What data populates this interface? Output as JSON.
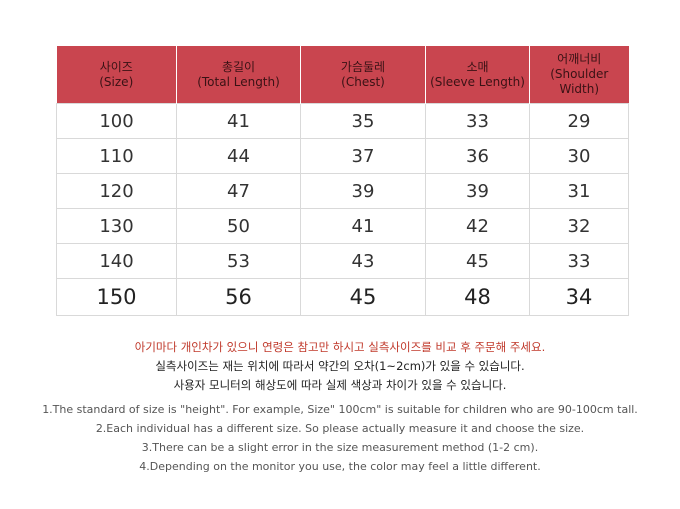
{
  "table": {
    "headers": [
      {
        "ko": "사이즈",
        "en": "(Size)"
      },
      {
        "ko": "총길이",
        "en": "(Total Length)"
      },
      {
        "ko": "가슴둘레",
        "en": "(Chest)"
      },
      {
        "ko": "소매",
        "en": "(Sleeve Length)"
      },
      {
        "ko": "어깨너비",
        "en": "(Shoulder Width)"
      }
    ],
    "rows": [
      [
        "100",
        "41",
        "35",
        "33",
        "29"
      ],
      [
        "110",
        "44",
        "37",
        "36",
        "30"
      ],
      [
        "120",
        "47",
        "39",
        "39",
        "31"
      ],
      [
        "130",
        "50",
        "41",
        "42",
        "32"
      ],
      [
        "140",
        "53",
        "43",
        "45",
        "33"
      ],
      [
        "150",
        "56",
        "45",
        "48",
        "34"
      ]
    ]
  },
  "notes_ko": [
    "아기마다 개인차가 있으니 연령은 참고만 하시고 실측사이즈를 비교 후 주문해 주세요.",
    "실측사이즈는 재는 위치에 따라서 약간의  오차(1~2cm)가 있을 수 있습니다.",
    "사용자 모니터의 해상도에 따라 실제 색상과 차이가 있을 수 있습니다."
  ],
  "notes_en": [
    "1.The standard of size is \"height\". For example,  Size\" 100cm\" is suitable for children who are 90-100cm tall.",
    "2.Each individual has a different size. So please actually measure it and choose the size.",
    "3.There can be a slight error in the size measurement method (1-2 cm).",
    "4.Depending on the monitor you use, the color may feel a little different."
  ],
  "colors": {
    "header_bg": "#c9454f",
    "note_highlight": "#c0392b"
  }
}
